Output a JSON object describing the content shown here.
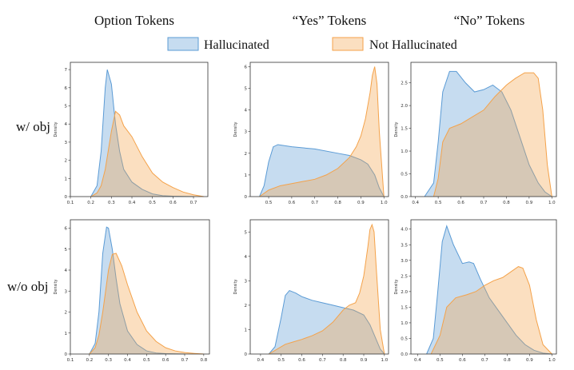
{
  "colors": {
    "hallucinated": "#5b9bd5",
    "not_hallucinated": "#f4a24a"
  },
  "legend": {
    "hallucinated": "Hallucinated",
    "not_hallucinated": "Not Hallucinated"
  },
  "column_titles": [
    "Option Tokens",
    "“Yes” Tokens",
    "“No” Tokens"
  ],
  "row_labels": [
    "w/ obj",
    "w/o obj"
  ],
  "chart_data": [
    {
      "type": "area",
      "title": "Option Tokens — w/ obj",
      "ylabel": "Density",
      "xlim": [
        0.1,
        0.77
      ],
      "ylim": [
        0,
        7.4
      ],
      "xticks": [
        "0.1",
        "0.2",
        "0.3",
        "0.4",
        "0.5",
        "0.6",
        "0.7"
      ],
      "xtick_values": [
        0.1,
        0.2,
        0.3,
        0.4,
        0.5,
        0.6,
        0.7
      ],
      "yticks": [
        "0",
        "1",
        "2",
        "3",
        "4",
        "5",
        "6",
        "7"
      ],
      "ytick_values": [
        0,
        1,
        2,
        3,
        4,
        5,
        6,
        7
      ],
      "series": [
        {
          "name": "Hallucinated",
          "x": [
            0.2,
            0.23,
            0.25,
            0.27,
            0.28,
            0.3,
            0.32,
            0.34,
            0.36,
            0.4,
            0.45,
            0.5,
            0.55,
            0.6,
            0.65,
            0.7
          ],
          "y": [
            0,
            0.6,
            2.5,
            6.0,
            7.0,
            6.2,
            4.0,
            2.5,
            1.5,
            0.8,
            0.4,
            0.15,
            0.05,
            0.02,
            0.01,
            0
          ]
        },
        {
          "name": "Not Hallucinated",
          "x": [
            0.2,
            0.23,
            0.25,
            0.27,
            0.3,
            0.32,
            0.34,
            0.36,
            0.4,
            0.45,
            0.5,
            0.55,
            0.6,
            0.65,
            0.7,
            0.75
          ],
          "y": [
            0,
            0.2,
            0.6,
            1.5,
            3.6,
            4.7,
            4.5,
            3.9,
            3.3,
            2.2,
            1.3,
            0.8,
            0.5,
            0.25,
            0.1,
            0
          ]
        }
      ]
    },
    {
      "type": "area",
      "title": "“Yes” Tokens — w/ obj",
      "ylabel": "Density",
      "xlim": [
        0.42,
        1.02
      ],
      "ylim": [
        0,
        6.2
      ],
      "xticks": [
        "0.5",
        "0.6",
        "0.7",
        "0.8",
        "0.9",
        "1.0"
      ],
      "xtick_values": [
        0.5,
        0.6,
        0.7,
        0.8,
        0.9,
        1.0
      ],
      "yticks": [
        "0",
        "1",
        "2",
        "3",
        "4",
        "5",
        "6"
      ],
      "ytick_values": [
        0,
        1,
        2,
        3,
        4,
        5,
        6
      ],
      "series": [
        {
          "name": "Hallucinated",
          "x": [
            0.46,
            0.48,
            0.5,
            0.52,
            0.54,
            0.6,
            0.7,
            0.8,
            0.85,
            0.9,
            0.93,
            0.96,
            0.98,
            1.0
          ],
          "y": [
            0,
            0.5,
            1.6,
            2.3,
            2.4,
            2.3,
            2.2,
            2.0,
            1.9,
            1.7,
            1.5,
            1.0,
            0.4,
            0
          ]
        },
        {
          "name": "Not Hallucinated",
          "x": [
            0.46,
            0.5,
            0.55,
            0.6,
            0.65,
            0.7,
            0.75,
            0.8,
            0.85,
            0.88,
            0.9,
            0.92,
            0.94,
            0.95,
            0.96,
            0.97,
            0.98,
            1.0
          ],
          "y": [
            0,
            0.3,
            0.5,
            0.6,
            0.7,
            0.8,
            1.0,
            1.3,
            1.8,
            2.3,
            2.8,
            3.6,
            4.8,
            5.6,
            6.0,
            5.2,
            3.0,
            0
          ]
        }
      ]
    },
    {
      "type": "area",
      "title": "“No” Tokens — w/ obj",
      "ylabel": "Density",
      "xlim": [
        0.38,
        1.02
      ],
      "ylim": [
        0,
        2.95
      ],
      "xticks": [
        "0.4",
        "0.5",
        "0.6",
        "0.7",
        "0.8",
        "0.9",
        "1.0"
      ],
      "xtick_values": [
        0.4,
        0.5,
        0.6,
        0.7,
        0.8,
        0.9,
        1.0
      ],
      "yticks": [
        "0.0",
        "0.5",
        "1.0",
        "1.5",
        "2.0",
        "2.5"
      ],
      "ytick_values": [
        0,
        0.5,
        1.0,
        1.5,
        2.0,
        2.5
      ],
      "series": [
        {
          "name": "Hallucinated",
          "x": [
            0.44,
            0.48,
            0.5,
            0.52,
            0.55,
            0.58,
            0.62,
            0.66,
            0.7,
            0.74,
            0.78,
            0.82,
            0.86,
            0.9,
            0.94,
            0.97,
            1.0
          ],
          "y": [
            0,
            0.3,
            1.2,
            2.3,
            2.75,
            2.75,
            2.5,
            2.3,
            2.35,
            2.45,
            2.3,
            1.9,
            1.3,
            0.7,
            0.3,
            0.1,
            0
          ]
        },
        {
          "name": "Not Hallucinated",
          "x": [
            0.48,
            0.5,
            0.52,
            0.55,
            0.6,
            0.65,
            0.7,
            0.75,
            0.8,
            0.84,
            0.88,
            0.92,
            0.94,
            0.96,
            0.98,
            1.0
          ],
          "y": [
            0,
            0.4,
            1.2,
            1.5,
            1.6,
            1.75,
            1.9,
            2.2,
            2.45,
            2.6,
            2.72,
            2.72,
            2.6,
            1.9,
            0.7,
            0
          ]
        }
      ]
    },
    {
      "type": "area",
      "title": "Option Tokens — w/o obj",
      "ylabel": "Density",
      "xlim": [
        0.1,
        0.83
      ],
      "ylim": [
        0,
        6.4
      ],
      "xticks": [
        "0.1",
        "0.2",
        "0.3",
        "0.4",
        "0.5",
        "0.6",
        "0.7",
        "0.8"
      ],
      "xtick_values": [
        0.1,
        0.2,
        0.3,
        0.4,
        0.5,
        0.6,
        0.7,
        0.8
      ],
      "yticks": [
        "0",
        "1",
        "2",
        "3",
        "4",
        "5",
        "6"
      ],
      "ytick_values": [
        0,
        1,
        2,
        3,
        4,
        5,
        6
      ],
      "series": [
        {
          "name": "Hallucinated",
          "x": [
            0.2,
            0.23,
            0.25,
            0.27,
            0.29,
            0.3,
            0.32,
            0.34,
            0.36,
            0.4,
            0.45,
            0.5,
            0.55,
            0.6,
            0.65,
            0.7
          ],
          "y": [
            0,
            0.5,
            2.0,
            4.8,
            6.05,
            6.0,
            5.0,
            3.6,
            2.4,
            1.1,
            0.45,
            0.15,
            0.05,
            0.02,
            0.01,
            0
          ]
        },
        {
          "name": "Not Hallucinated",
          "x": [
            0.2,
            0.23,
            0.25,
            0.27,
            0.3,
            0.32,
            0.34,
            0.37,
            0.4,
            0.45,
            0.5,
            0.55,
            0.6,
            0.65,
            0.7,
            0.75,
            0.8
          ],
          "y": [
            0,
            0.3,
            0.9,
            2.0,
            4.0,
            4.75,
            4.8,
            4.2,
            3.3,
            2.0,
            1.1,
            0.6,
            0.3,
            0.15,
            0.07,
            0.03,
            0
          ]
        }
      ]
    },
    {
      "type": "area",
      "title": "“Yes” Tokens — w/o obj",
      "ylabel": "Density",
      "xlim": [
        0.35,
        1.02
      ],
      "ylim": [
        0,
        5.5
      ],
      "xticks": [
        "0.4",
        "0.5",
        "0.6",
        "0.7",
        "0.8",
        "0.9",
        "1.0"
      ],
      "xtick_values": [
        0.4,
        0.5,
        0.6,
        0.7,
        0.8,
        0.9,
        1.0
      ],
      "yticks": [
        "0",
        "1",
        "2",
        "3",
        "4",
        "5"
      ],
      "ytick_values": [
        0,
        1,
        2,
        3,
        4,
        5
      ],
      "series": [
        {
          "name": "Hallucinated",
          "x": [
            0.44,
            0.47,
            0.5,
            0.52,
            0.54,
            0.57,
            0.6,
            0.65,
            0.7,
            0.75,
            0.8,
            0.85,
            0.9,
            0.93,
            0.96,
            0.98,
            1.0
          ],
          "y": [
            0,
            0.3,
            1.5,
            2.4,
            2.6,
            2.5,
            2.35,
            2.2,
            2.1,
            2.0,
            1.9,
            1.8,
            1.6,
            1.2,
            0.6,
            0.2,
            0
          ]
        },
        {
          "name": "Not Hallucinated",
          "x": [
            0.44,
            0.48,
            0.52,
            0.56,
            0.6,
            0.65,
            0.7,
            0.75,
            0.8,
            0.83,
            0.86,
            0.88,
            0.9,
            0.92,
            0.93,
            0.94,
            0.95,
            0.96,
            0.98,
            1.0
          ],
          "y": [
            0,
            0.2,
            0.4,
            0.5,
            0.6,
            0.75,
            0.95,
            1.3,
            1.8,
            2.0,
            2.1,
            2.5,
            3.2,
            4.4,
            5.1,
            5.3,
            5.0,
            3.6,
            1.0,
            0
          ]
        }
      ]
    },
    {
      "type": "area",
      "title": "“No” Tokens — w/o obj",
      "ylabel": "Density",
      "xlim": [
        0.37,
        1.02
      ],
      "ylim": [
        0,
        4.3
      ],
      "xticks": [
        "0.4",
        "0.5",
        "0.6",
        "0.7",
        "0.8",
        "0.9",
        "1.0"
      ],
      "xtick_values": [
        0.4,
        0.5,
        0.6,
        0.7,
        0.8,
        0.9,
        1.0
      ],
      "yticks": [
        "0.0",
        "0.5",
        "1.0",
        "1.5",
        "2.0",
        "2.5",
        "3.0",
        "3.5",
        "4.0"
      ],
      "ytick_values": [
        0,
        0.5,
        1.0,
        1.5,
        2.0,
        2.5,
        3.0,
        3.5,
        4.0
      ],
      "series": [
        {
          "name": "Hallucinated",
          "x": [
            0.44,
            0.47,
            0.49,
            0.51,
            0.53,
            0.56,
            0.6,
            0.63,
            0.65,
            0.68,
            0.72,
            0.76,
            0.8,
            0.84,
            0.88,
            0.92,
            0.96,
            1.0
          ],
          "y": [
            0,
            0.5,
            2.0,
            3.6,
            4.1,
            3.5,
            2.9,
            2.95,
            2.9,
            2.4,
            1.8,
            1.4,
            1.0,
            0.6,
            0.3,
            0.12,
            0.03,
            0
          ]
        },
        {
          "name": "Not Hallucinated",
          "x": [
            0.46,
            0.5,
            0.53,
            0.57,
            0.62,
            0.66,
            0.7,
            0.74,
            0.78,
            0.82,
            0.85,
            0.87,
            0.9,
            0.93,
            0.96,
            1.0
          ],
          "y": [
            0,
            0.6,
            1.5,
            1.8,
            1.9,
            2.0,
            2.2,
            2.35,
            2.45,
            2.65,
            2.8,
            2.75,
            2.2,
            1.1,
            0.3,
            0
          ]
        }
      ]
    }
  ]
}
